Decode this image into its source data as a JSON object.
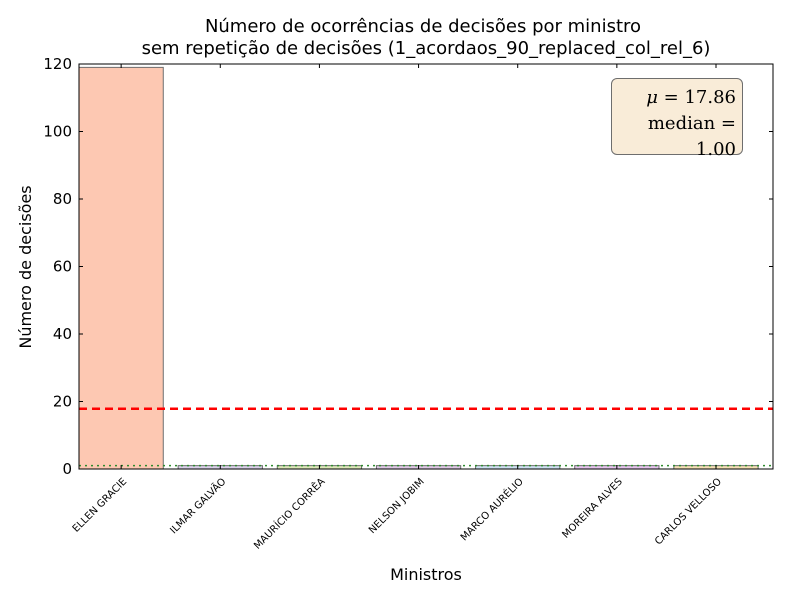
{
  "chart_data": {
    "type": "bar",
    "title": "Número de ocorrências de decisões por ministro",
    "subtitle": "sem repetição de decisões (1_acordaos_90_replaced_col_rel_6)",
    "xlabel": "Ministros",
    "ylabel": "Número de decisões",
    "ylim": [
      0,
      120
    ],
    "yticks": [
      0,
      20,
      40,
      60,
      80,
      100,
      120
    ],
    "grid": false,
    "categories": [
      "ELLEN GRACIE",
      "ILMAR GALVÃO",
      "MAURÍCIO CORRÊA",
      "NELSON JOBIM",
      "MARCO AURÉLIO",
      "MOREIRA ALVES",
      "CARLOS VELLOSO"
    ],
    "values": [
      119,
      1,
      1,
      1,
      1,
      1,
      1
    ],
    "bar_colors": [
      "#fdc8b2",
      "#d8d0e8",
      "#dce8b8",
      "#ddc8e4",
      "#cce0f0",
      "#e4c4ec",
      "#f4e0b4"
    ],
    "mean_line": {
      "value": 17.86,
      "color": "#ff0000",
      "style": "dashed"
    },
    "median_line": {
      "value": 1.0,
      "color": "#2e8b2e",
      "style": "dotted"
    },
    "stats_box": {
      "mean_symbol": "μ",
      "mean_value": "17.86",
      "median_word": "median",
      "median_value": "1.00",
      "background": "#f9ecd8"
    }
  }
}
